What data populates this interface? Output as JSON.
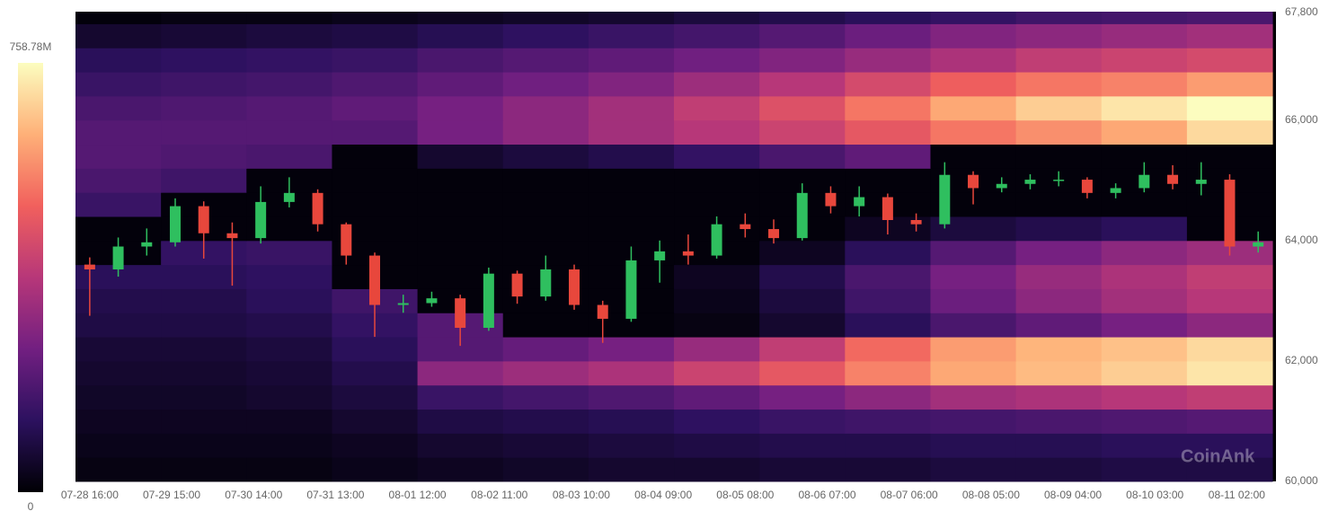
{
  "chart_data": {
    "type": "heatmap",
    "watermark": "CoinAnk",
    "xlim": [
      0,
      337
    ],
    "xticks": [
      {
        "value": 4,
        "label": "07-28 16:00"
      },
      {
        "value": 27,
        "label": "07-29 15:00"
      },
      {
        "value": 50,
        "label": "07-30 14:00"
      },
      {
        "value": 73,
        "label": "07-31 13:00"
      },
      {
        "value": 96,
        "label": "08-01 12:00"
      },
      {
        "value": 119,
        "label": "08-02 11:00"
      },
      {
        "value": 142,
        "label": "08-03 10:00"
      },
      {
        "value": 165,
        "label": "08-04 09:00"
      },
      {
        "value": 188,
        "label": "08-05 08:00"
      },
      {
        "value": 211,
        "label": "08-06 07:00"
      },
      {
        "value": 234,
        "label": "08-07 06:00"
      },
      {
        "value": 257,
        "label": "08-08 05:00"
      },
      {
        "value": 280,
        "label": "08-09 04:00"
      },
      {
        "value": 303,
        "label": "08-10 03:00"
      },
      {
        "value": 326,
        "label": "08-11 02:00"
      }
    ],
    "ylim": [
      60000,
      67800
    ],
    "yticks": [
      {
        "value": 60000,
        "label": "60,000"
      },
      {
        "value": 62000,
        "label": "62,000"
      },
      {
        "value": 64000,
        "label": "64,000"
      },
      {
        "value": 66000,
        "label": "66,000"
      },
      {
        "value": 67800,
        "label": "67,800"
      }
    ],
    "zlim": [
      0,
      758.78
    ],
    "zticks": [
      0,
      {
        "value": 758.78,
        "label": "758.78M"
      }
    ],
    "colormap": [
      "#000004",
      "#2c115f",
      "#721f81",
      "#b73779",
      "#f1605d",
      "#feb078",
      "#fcfdbf"
    ],
    "xbins": [
      0,
      24,
      48,
      72,
      96,
      120,
      144,
      168,
      192,
      216,
      240,
      264,
      288,
      312,
      336
    ],
    "ybins": [
      60000,
      60400,
      60800,
      61200,
      61600,
      62000,
      62400,
      62800,
      63200,
      63600,
      64000,
      64400,
      64800,
      65200,
      65600,
      66000,
      66400,
      66800,
      67200,
      67600,
      67800
    ],
    "z": [
      [
        20,
        20,
        20,
        30,
        40,
        50,
        60,
        60,
        70,
        70,
        80,
        80,
        90,
        90
      ],
      [
        30,
        30,
        30,
        40,
        60,
        70,
        80,
        90,
        100,
        100,
        110,
        110,
        120,
        120
      ],
      [
        40,
        40,
        40,
        60,
        90,
        100,
        110,
        130,
        150,
        160,
        170,
        180,
        190,
        200
      ],
      [
        50,
        50,
        60,
        80,
        150,
        170,
        190,
        220,
        260,
        300,
        340,
        360,
        380,
        400
      ],
      [
        60,
        60,
        70,
        100,
        300,
        330,
        360,
        420,
        480,
        560,
        620,
        650,
        680,
        720
      ],
      [
        70,
        70,
        80,
        120,
        200,
        230,
        260,
        320,
        400,
        520,
        600,
        640,
        660,
        700
      ],
      [
        90,
        90,
        100,
        140,
        200,
        10,
        10,
        20,
        60,
        120,
        180,
        220,
        260,
        300
      ],
      [
        100,
        100,
        120,
        160,
        10,
        10,
        10,
        30,
        80,
        160,
        240,
        300,
        340,
        380
      ],
      [
        120,
        120,
        130,
        10,
        10,
        10,
        10,
        40,
        100,
        180,
        260,
        320,
        360,
        400
      ],
      [
        10,
        140,
        150,
        10,
        10,
        10,
        10,
        10,
        40,
        120,
        200,
        260,
        300,
        330
      ],
      [
        10,
        10,
        10,
        10,
        10,
        10,
        10,
        10,
        10,
        40,
        80,
        100,
        120,
        10
      ],
      [
        150,
        10,
        10,
        10,
        10,
        10,
        10,
        10,
        10,
        10,
        10,
        10,
        10,
        10
      ],
      [
        180,
        160,
        10,
        10,
        10,
        10,
        10,
        10,
        10,
        10,
        10,
        10,
        10,
        10
      ],
      [
        200,
        190,
        180,
        10,
        60,
        80,
        100,
        140,
        180,
        220,
        10,
        10,
        10,
        10
      ],
      [
        200,
        200,
        200,
        200,
        260,
        300,
        340,
        380,
        420,
        480,
        540,
        580,
        620,
        700
      ],
      [
        180,
        190,
        200,
        220,
        260,
        300,
        340,
        400,
        460,
        540,
        620,
        680,
        720,
        758.78
      ],
      [
        150,
        160,
        170,
        190,
        220,
        250,
        280,
        330,
        380,
        440,
        500,
        540,
        560,
        600
      ],
      [
        120,
        130,
        140,
        150,
        180,
        200,
        220,
        250,
        280,
        320,
        360,
        400,
        420,
        440
      ],
      [
        60,
        70,
        80,
        90,
        110,
        130,
        150,
        170,
        200,
        240,
        280,
        300,
        320,
        340
      ],
      [
        10,
        20,
        20,
        30,
        40,
        50,
        60,
        80,
        100,
        120,
        140,
        160,
        170,
        180
      ]
    ],
    "candles": {
      "up_color": "#2fbf5f",
      "down_color": "#e8473c",
      "x": [
        4,
        12,
        20,
        28,
        36,
        44,
        52,
        60,
        68,
        76,
        84,
        92,
        100,
        108,
        116,
        124,
        132,
        140,
        148,
        156,
        164,
        172,
        180,
        188,
        196,
        204,
        212,
        220,
        228,
        236,
        244,
        252,
        260,
        268,
        276,
        284,
        292,
        300,
        308,
        316,
        324,
        332
      ],
      "open": [
        63600,
        63520,
        63900,
        63970,
        64570,
        64120,
        64040,
        64640,
        64790,
        64270,
        63750,
        62930,
        62960,
        63040,
        62550,
        63450,
        63070,
        63520,
        62930,
        62700,
        63670,
        63820,
        63750,
        64270,
        64190,
        64040,
        64790,
        64570,
        64720,
        64340,
        64270,
        65090,
        64870,
        64940,
        65010,
        65010,
        64790,
        64870,
        65090,
        64940,
        65010,
        63900
      ],
      "high": [
        63720,
        64050,
        64200,
        64700,
        64650,
        64300,
        64900,
        65050,
        64850,
        64300,
        63800,
        63100,
        63150,
        63100,
        63550,
        63500,
        63750,
        63600,
        63000,
        63900,
        64000,
        64100,
        64400,
        64450,
        64350,
        64950,
        64900,
        64900,
        64780,
        64450,
        65300,
        65150,
        65050,
        65100,
        65150,
        65050,
        64950,
        65300,
        65250,
        65300,
        65100,
        64150
      ],
      "low": [
        62750,
        63400,
        63750,
        63900,
        63700,
        63250,
        63950,
        64550,
        64150,
        63600,
        62400,
        62800,
        62900,
        62250,
        62500,
        62950,
        63000,
        62850,
        62300,
        62650,
        63300,
        63600,
        63700,
        64050,
        63950,
        64000,
        64450,
        64400,
        64100,
        64150,
        64200,
        64600,
        64800,
        64850,
        64900,
        64700,
        64700,
        64800,
        64850,
        64750,
        63750,
        63800
      ],
      "close": [
        63520,
        63900,
        63970,
        64570,
        64120,
        64040,
        64640,
        64790,
        64270,
        63750,
        62930,
        62960,
        63040,
        62550,
        63450,
        63070,
        63520,
        62930,
        62700,
        63670,
        63820,
        63750,
        64270,
        64190,
        64040,
        64790,
        64570,
        64720,
        64340,
        64270,
        65090,
        64870,
        64940,
        65010,
        65010,
        64790,
        64870,
        65090,
        64940,
        65010,
        63900,
        63970
      ]
    }
  }
}
